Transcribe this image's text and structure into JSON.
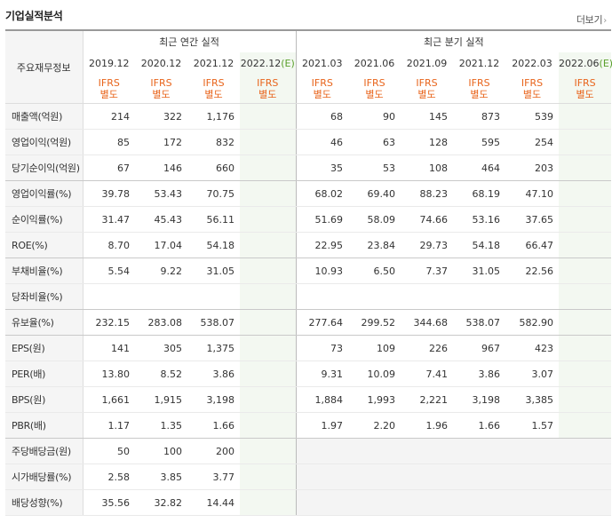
{
  "header": {
    "title": "기업실적분석",
    "more_label": "더보기",
    "more_icon": "chevron-right-icon"
  },
  "table": {
    "label_header": "주요재무정보",
    "group_annual": "최근 연간 실적",
    "group_quarter": "최근 분기 실적",
    "periods_annual": [
      "2019.12",
      "2020.12",
      "2021.12",
      "2022.12"
    ],
    "periods_quarter": [
      "2021.03",
      "2021.06",
      "2021.09",
      "2021.12",
      "2022.03",
      "2022.06"
    ],
    "estimate_mark": "(E)",
    "ifrs_top": "IFRS",
    "ifrs_bottom": "별도",
    "rows": [
      {
        "label": "매출액(억원)",
        "annual": [
          "214",
          "322",
          "1,176",
          ""
        ],
        "quarter": [
          "68",
          "90",
          "145",
          "873",
          "539",
          ""
        ]
      },
      {
        "label": "영업이익(억원)",
        "annual": [
          "85",
          "172",
          "832",
          ""
        ],
        "quarter": [
          "46",
          "63",
          "128",
          "595",
          "254",
          ""
        ]
      },
      {
        "label": "당기순이익(억원)",
        "annual": [
          "67",
          "146",
          "660",
          ""
        ],
        "quarter": [
          "35",
          "53",
          "108",
          "464",
          "203",
          ""
        ]
      },
      {
        "label": "영업이익률(%)",
        "annual": [
          "39.78",
          "53.43",
          "70.75",
          ""
        ],
        "quarter": [
          "68.02",
          "69.40",
          "88.23",
          "68.19",
          "47.10",
          ""
        ]
      },
      {
        "label": "순이익률(%)",
        "annual": [
          "31.47",
          "45.43",
          "56.11",
          ""
        ],
        "quarter": [
          "51.69",
          "58.09",
          "74.66",
          "53.16",
          "37.65",
          ""
        ]
      },
      {
        "label": "ROE(%)",
        "annual": [
          "8.70",
          "17.04",
          "54.18",
          ""
        ],
        "quarter": [
          "22.95",
          "23.84",
          "29.73",
          "54.18",
          "66.47",
          ""
        ]
      },
      {
        "label": "부채비율(%)",
        "annual": [
          "5.54",
          "9.22",
          "31.05",
          ""
        ],
        "quarter": [
          "10.93",
          "6.50",
          "7.37",
          "31.05",
          "22.56",
          ""
        ]
      },
      {
        "label": "당좌비율(%)",
        "annual": [
          "",
          "",
          "",
          ""
        ],
        "quarter": [
          "",
          "",
          "",
          "",
          "",
          ""
        ]
      },
      {
        "label": "유보율(%)",
        "annual": [
          "232.15",
          "283.08",
          "538.07",
          ""
        ],
        "quarter": [
          "277.64",
          "299.52",
          "344.68",
          "538.07",
          "582.90",
          ""
        ]
      },
      {
        "label": "EPS(원)",
        "annual": [
          "141",
          "305",
          "1,375",
          ""
        ],
        "quarter": [
          "73",
          "109",
          "226",
          "967",
          "423",
          ""
        ]
      },
      {
        "label": "PER(배)",
        "annual": [
          "13.80",
          "8.52",
          "3.86",
          ""
        ],
        "quarter": [
          "9.31",
          "10.09",
          "7.41",
          "3.86",
          "3.07",
          ""
        ]
      },
      {
        "label": "BPS(원)",
        "annual": [
          "1,661",
          "1,915",
          "3,198",
          ""
        ],
        "quarter": [
          "1,884",
          "1,993",
          "2,221",
          "3,198",
          "3,385",
          ""
        ]
      },
      {
        "label": "PBR(배)",
        "annual": [
          "1.17",
          "1.35",
          "1.66",
          ""
        ],
        "quarter": [
          "1.97",
          "2.20",
          "1.96",
          "1.66",
          "1.57",
          ""
        ]
      },
      {
        "label": "주당배당금(원)",
        "annual": [
          "50",
          "100",
          "200",
          ""
        ],
        "quarter": [
          "",
          "",
          "",
          "",
          "",
          ""
        ]
      },
      {
        "label": "시가배당률(%)",
        "annual": [
          "2.58",
          "3.85",
          "3.77",
          ""
        ],
        "quarter": [
          "",
          "",
          "",
          "",
          "",
          ""
        ]
      },
      {
        "label": "배당성향(%)",
        "annual": [
          "35.56",
          "32.82",
          "14.44",
          ""
        ],
        "quarter": [
          "",
          "",
          "",
          "",
          "",
          ""
        ]
      }
    ]
  },
  "colors": {
    "ifrs": "#e8641b",
    "estimate_bg": "#f3f8f1",
    "estimate_mark": "#5aa02c",
    "label_bg": "#f5f5f5"
  }
}
